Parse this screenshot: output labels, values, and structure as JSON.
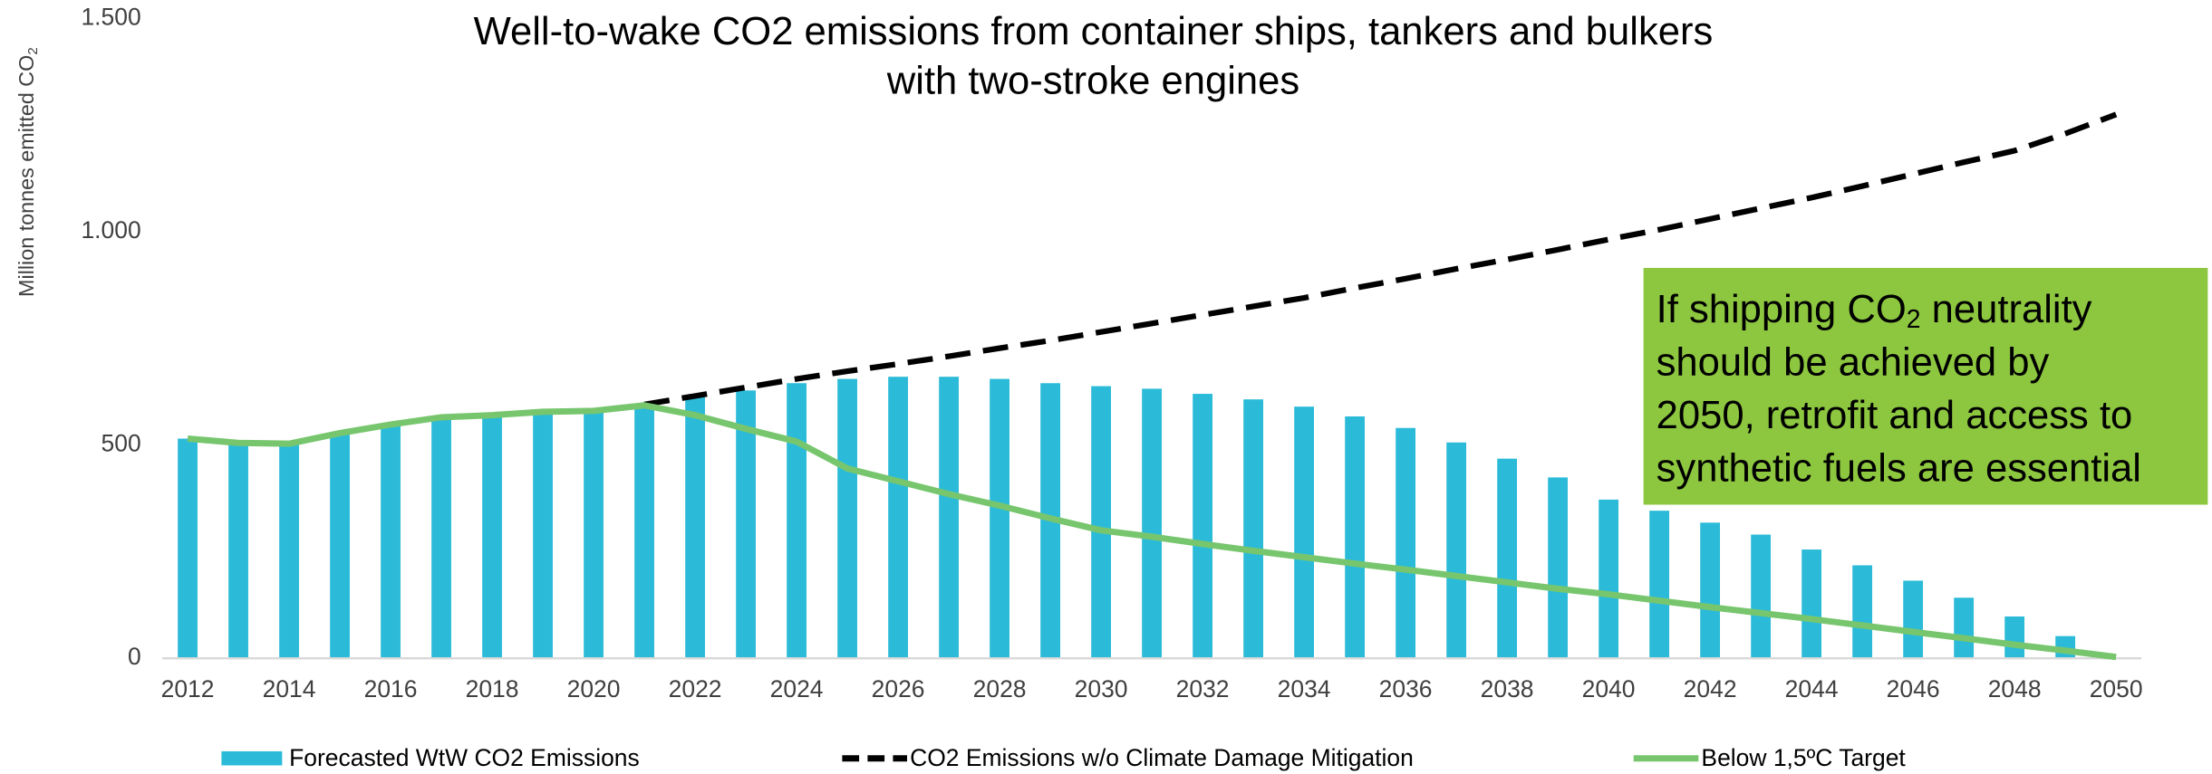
{
  "chart_data": {
    "type": "bar",
    "title": [
      "Well-to-wake CO2 emissions from container ships, tankers and bulkers",
      "with two-stroke engines"
    ],
    "ylabel": [
      {
        "t": "Million tonnes emitted CO"
      },
      {
        "t": "2",
        "sub": true
      }
    ],
    "x": [
      2012,
      2013,
      2014,
      2015,
      2016,
      2017,
      2018,
      2019,
      2020,
      2021,
      2022,
      2023,
      2024,
      2025,
      2026,
      2027,
      2028,
      2029,
      2030,
      2031,
      2032,
      2033,
      2034,
      2035,
      2036,
      2037,
      2038,
      2039,
      2040,
      2041,
      2042,
      2043,
      2044,
      2045,
      2046,
      2047,
      2048,
      2049,
      2050
    ],
    "xlim": [
      2011.5,
      2050.5
    ],
    "xticks": [
      2012,
      2014,
      2016,
      2018,
      2020,
      2022,
      2024,
      2026,
      2028,
      2030,
      2032,
      2034,
      2036,
      2038,
      2040,
      2042,
      2044,
      2046,
      2048,
      2050
    ],
    "ylim": [
      0,
      1500
    ],
    "yticks": [
      0,
      500,
      {
        "value": 1000,
        "label": "1.000"
      },
      {
        "value": 1500,
        "label": "1.500"
      }
    ],
    "grid": false,
    "series": [
      {
        "name": "Forecasted WtW CO2 Emissions",
        "type": "bar",
        "color": "#2bbbd8",
        "values": [
          515,
          505,
          505,
          530,
          548,
          562,
          568,
          577,
          580,
          595,
          612,
          628,
          645,
          655,
          660,
          660,
          655,
          645,
          638,
          632,
          620,
          607,
          590,
          567,
          540,
          506,
          468,
          424,
          372,
          346,
          318,
          290,
          255,
          218,
          182,
          142,
          98,
          52,
          0
        ]
      },
      {
        "name": "CO2 Emissions w/o Climate Damage Mitigation",
        "type": "line",
        "dashed": true,
        "color": "#000000",
        "values": [
          null,
          null,
          null,
          null,
          null,
          null,
          null,
          null,
          null,
          595,
          615,
          635,
          655,
          673,
          690,
          708,
          727,
          745,
          765,
          785,
          805,
          825,
          845,
          868,
          890,
          913,
          935,
          958,
          982,
          1005,
          1030,
          1055,
          1080,
          1107,
          1135,
          1163,
          1190,
          1230,
          1275
        ]
      },
      {
        "name": "Below 1,5ºC Target",
        "type": "line",
        "dashed": false,
        "color": "#77c66e",
        "values": [
          515,
          505,
          503,
          528,
          548,
          565,
          570,
          578,
          580,
          593,
          570,
          538,
          508,
          445,
          415,
          385,
          358,
          328,
          300,
          285,
          268,
          252,
          237,
          222,
          208,
          193,
          178,
          163,
          150,
          135,
          120,
          106,
          92,
          77,
          62,
          47,
          32,
          18,
          3
        ]
      }
    ],
    "annotation": {
      "color": "#8dc63f",
      "lines": [
        [
          {
            "t": "If shipping CO"
          },
          {
            "t": "2",
            "sub": true
          },
          {
            "t": " neutrality"
          }
        ],
        [
          {
            "t": "should be achieved by"
          }
        ],
        [
          {
            "t": "2050, retrofit and access to"
          }
        ],
        [
          {
            "t": "synthetic fuels are essential"
          }
        ]
      ]
    },
    "legend": "bottom"
  }
}
